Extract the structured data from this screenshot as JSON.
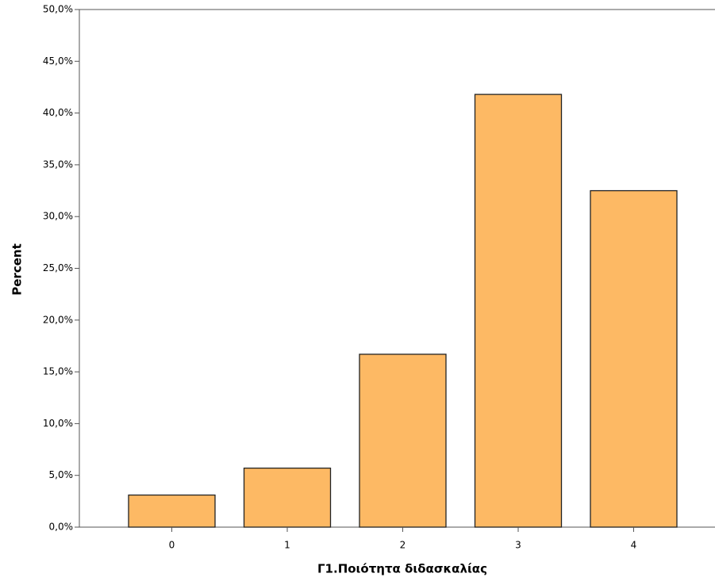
{
  "chart_data": {
    "type": "bar",
    "x_label": "Γ1.Ποιότητα διδασκαλίας",
    "y_label": "Percent",
    "categories": [
      "0",
      "1",
      "2",
      "3",
      "4"
    ],
    "values": [
      3.1,
      5.7,
      16.7,
      41.8,
      32.5
    ],
    "color": "#fdb964",
    "ylim": [
      0,
      50
    ],
    "yticks": [
      {
        "value": 0,
        "label": "0,0%"
      },
      {
        "value": 5,
        "label": "5,0%"
      },
      {
        "value": 10,
        "label": "10,0%"
      },
      {
        "value": 15,
        "label": "15,0%"
      },
      {
        "value": 20,
        "label": "20,0%"
      },
      {
        "value": 25,
        "label": "25,0%"
      },
      {
        "value": 30,
        "label": "30,0%"
      },
      {
        "value": 35,
        "label": "35,0%"
      },
      {
        "value": 40,
        "label": "40,0%"
      },
      {
        "value": 45,
        "label": "45,0%"
      },
      {
        "value": 50,
        "label": "50,0%"
      }
    ]
  }
}
